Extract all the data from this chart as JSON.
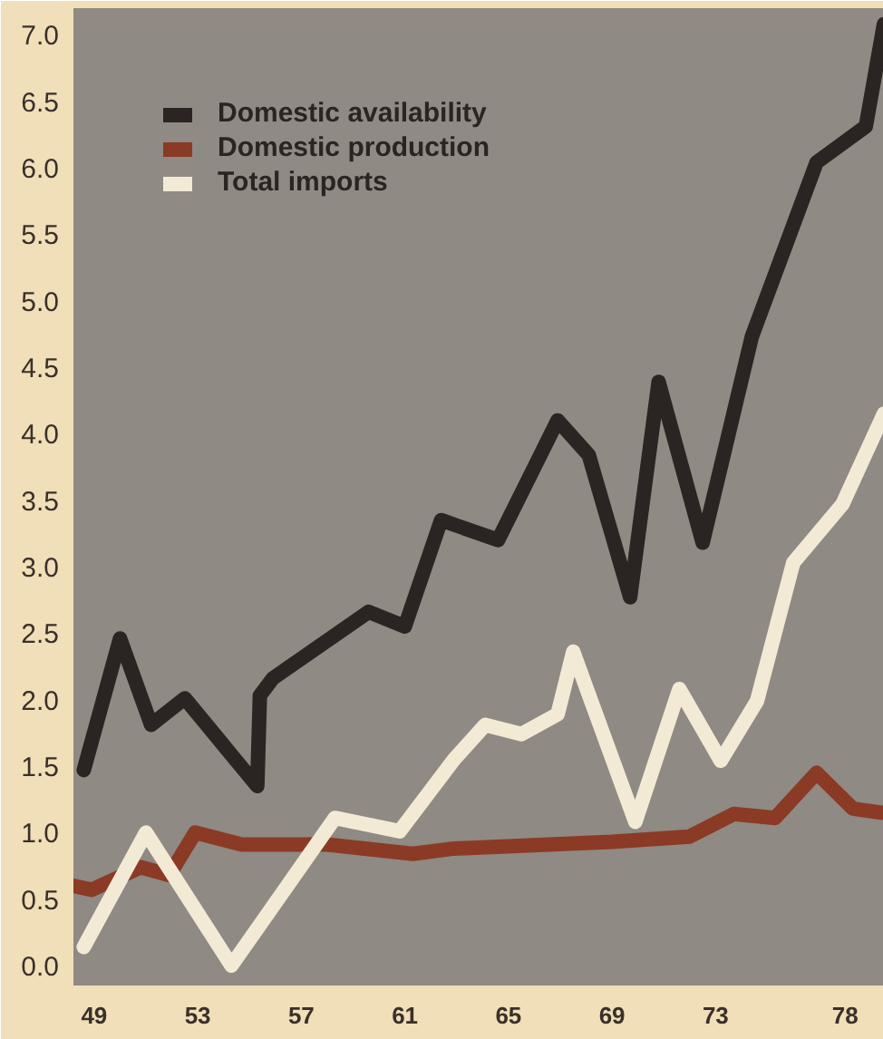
{
  "chart_data": {
    "type": "line",
    "xlim": [
      48.2,
      79.5
    ],
    "ylim": [
      -0.15,
      7.2
    ],
    "xticks": [
      {
        "value": 49,
        "label": "49"
      },
      {
        "value": 53,
        "label": "53"
      },
      {
        "value": 57,
        "label": "57"
      },
      {
        "value": 61,
        "label": "61"
      },
      {
        "value": 65,
        "label": "65"
      },
      {
        "value": 69,
        "label": "69"
      },
      {
        "value": 73,
        "label": "73"
      },
      {
        "value": 78,
        "label": "78"
      }
    ],
    "yticks": [
      {
        "value": 0,
        "label": "0.0"
      },
      {
        "value": 0.5,
        "label": "0.5"
      },
      {
        "value": 1,
        "label": "1.0"
      },
      {
        "value": 1.5,
        "label": "1.5"
      },
      {
        "value": 2,
        "label": "2.0"
      },
      {
        "value": 2.5,
        "label": "2.5"
      },
      {
        "value": 3,
        "label": "3.0"
      },
      {
        "value": 3.5,
        "label": "3.5"
      },
      {
        "value": 4,
        "label": "4.0"
      },
      {
        "value": 4.5,
        "label": "4.5"
      },
      {
        "value": 5,
        "label": "5.0"
      },
      {
        "value": 5.5,
        "label": "5.5"
      },
      {
        "value": 6,
        "label": "6.0"
      },
      {
        "value": 6.5,
        "label": "6.5"
      },
      {
        "value": 7,
        "label": "7.0"
      }
    ],
    "grid": false,
    "legend": "top left",
    "series": [
      {
        "name": "Domestic availability",
        "color": "#2a2522",
        "x": [
          48.6,
          50.0,
          51.2,
          52.5,
          55.3,
          55.4,
          55.9,
          59.6,
          61.0,
          62.4,
          64.6,
          66.9,
          68.1,
          69.7,
          70.8,
          72.5,
          74.4,
          76.9,
          78.8,
          79.5
        ],
        "values": [
          1.47,
          2.46,
          1.81,
          2.01,
          1.35,
          2.03,
          2.16,
          2.66,
          2.55,
          3.35,
          3.2,
          4.1,
          3.84,
          2.77,
          4.39,
          3.18,
          4.73,
          6.04,
          6.31,
          7.08
        ]
      },
      {
        "name": "Domestic production",
        "color": "#8b3a26",
        "x": [
          48.2,
          48.9,
          50.8,
          51.9,
          52.9,
          54.7,
          58.0,
          61.3,
          62.9,
          69.0,
          72.0,
          73.7,
          75.3,
          76.9,
          78.3,
          79.4
        ],
        "values": [
          0.6,
          0.57,
          0.74,
          0.68,
          1.0,
          0.91,
          0.91,
          0.84,
          0.88,
          0.93,
          0.97,
          1.14,
          1.11,
          1.45,
          1.18,
          1.15
        ]
      },
      {
        "name": "Total imports",
        "color": "#f3ead6",
        "x": [
          48.6,
          51.0,
          54.3,
          58.3,
          60.8,
          62.9,
          64.1,
          65.5,
          66.9,
          67.5,
          69.9,
          71.6,
          73.2,
          74.6,
          75.5,
          76.0,
          77.9,
          79.5
        ],
        "values": [
          0.14,
          1.0,
          0.0,
          1.11,
          1.01,
          1.55,
          1.81,
          1.74,
          1.89,
          2.36,
          1.08,
          2.08,
          1.54,
          1.99,
          2.66,
          3.03,
          3.47,
          4.15
        ]
      }
    ]
  }
}
